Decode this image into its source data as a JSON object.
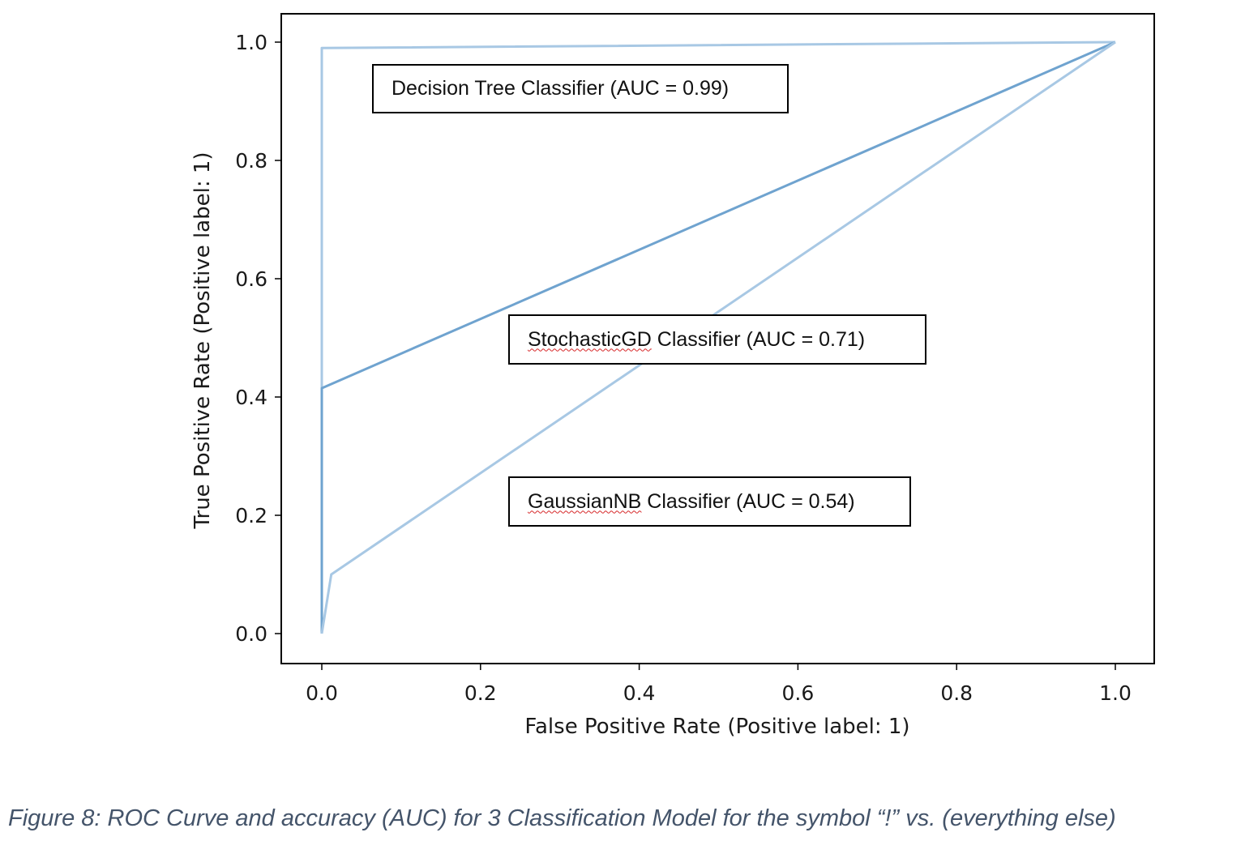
{
  "chart_data": {
    "type": "line",
    "xlabel": "False Positive Rate (Positive label: 1)",
    "ylabel": "True Positive Rate (Positive label: 1)",
    "xlim": [
      -0.05,
      1.05
    ],
    "ylim": [
      -0.05,
      1.05
    ],
    "xticks": [
      "0.0",
      "0.2",
      "0.4",
      "0.6",
      "0.8",
      "1.0"
    ],
    "yticks": [
      "0.0",
      "0.2",
      "0.4",
      "0.6",
      "0.8",
      "1.0"
    ],
    "grid": false,
    "series": [
      {
        "name": "Decision Tree Classifier",
        "x": [
          0.0,
          0.0,
          1.0
        ],
        "y": [
          0.0,
          0.99,
          1.0
        ],
        "color": "#a8c8e4"
      },
      {
        "name": "StochasticGD Classifier",
        "x": [
          0.0,
          0.0,
          1.0
        ],
        "y": [
          0.0,
          0.415,
          1.0
        ],
        "color": "#6fa3cf"
      },
      {
        "name": "GaussianNB Classifier",
        "x": [
          0.0,
          0.012,
          1.0
        ],
        "y": [
          0.0,
          0.1,
          1.0
        ],
        "color": "#a8c8e4"
      }
    ],
    "annotations": [
      {
        "name_text": "Decision Tree Classifier",
        "auc_text": " (AUC = 0.99)",
        "spellflag": false
      },
      {
        "name_text": "StochasticGD",
        "rest_text": " Classifier (AUC = 0.71)",
        "spellflag": true
      },
      {
        "name_text": "GaussianNB",
        "rest_text": " Classifier (AUC = 0.54)",
        "spellflag": true
      }
    ]
  },
  "caption": "Figure 8: ROC Curve and accuracy (AUC) for 3 Classification Model for the symbol “!” vs. (everything else)"
}
